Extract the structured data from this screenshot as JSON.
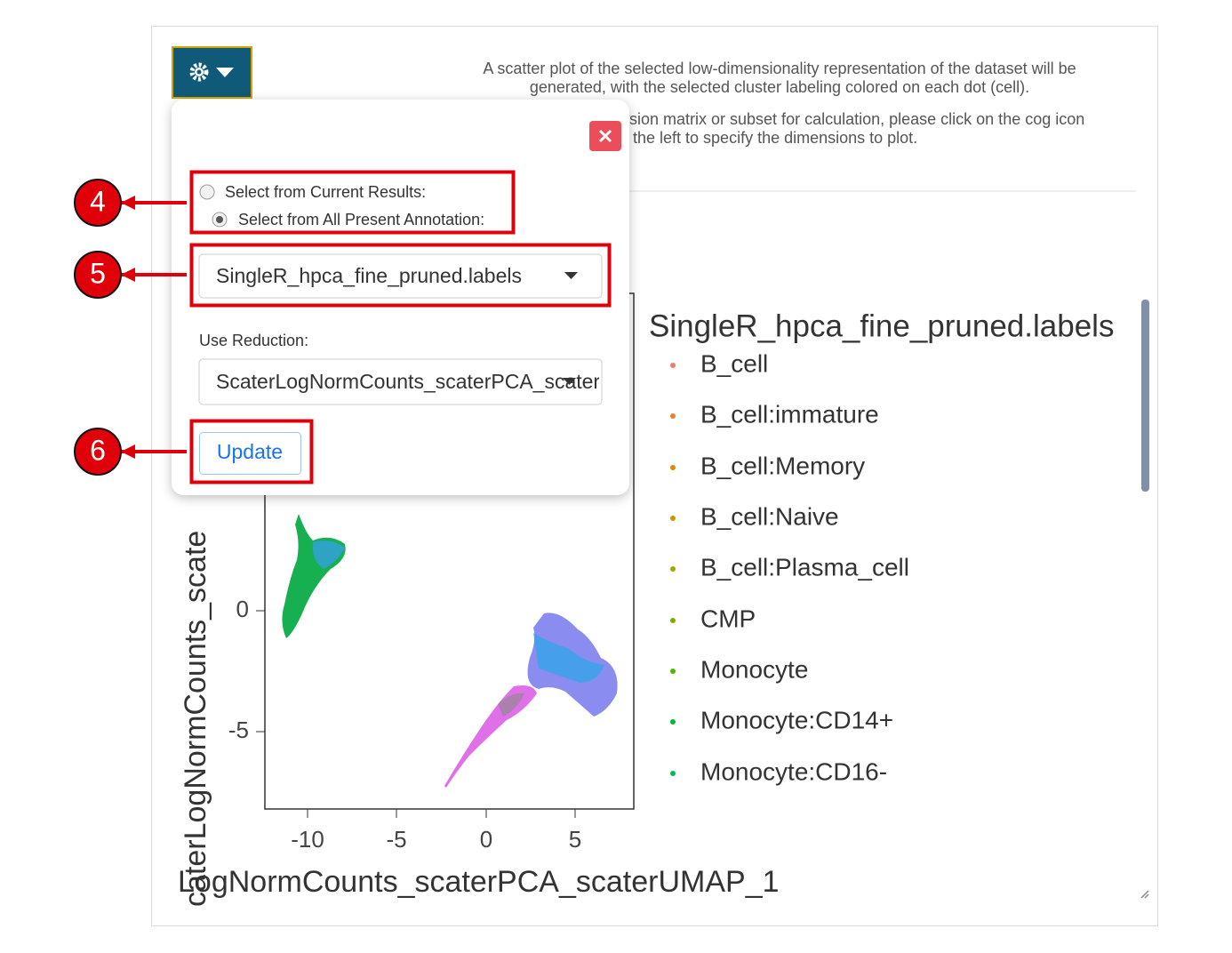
{
  "description": {
    "lines": [
      "A scatter plot of the selected low-dimensionality representation of the dataset will be",
      "generated, with the selected cluster labeling colored on each dot (cell).",
      "sion matrix or subset for calculation, please click on the cog icon",
      "the left to specify the dimensions to plot."
    ]
  },
  "popup": {
    "radio_options": [
      "Select from Current Results:",
      "Select from All Present Annotation:"
    ],
    "annotation_select": "SingleR_hpca_fine_pruned.labels",
    "reduction_label": "Use Reduction:",
    "reduction_select": "ScaterLogNormCounts_scaterPCA_scater",
    "update_button": "Update"
  },
  "callouts": [
    "4",
    "5",
    "6"
  ],
  "plot": {
    "y_axis_label": "caterLogNormCounts_scate",
    "x_axis_label": "LogNormCounts_scaterPCA_scaterUMAP_1",
    "y_ticks": [
      "0",
      "-5"
    ],
    "x_ticks": [
      "-10",
      "-5",
      "0",
      "5"
    ],
    "legend": {
      "title": "SingleR_hpca_fine_pruned.labels",
      "items": [
        {
          "label": "B_cell",
          "color": "#f8766d"
        },
        {
          "label": "B_cell:immature",
          "color": "#ef7f26"
        },
        {
          "label": "B_cell:Memory",
          "color": "#e38900"
        },
        {
          "label": "B_cell:Naive",
          "color": "#c49a00"
        },
        {
          "label": "B_cell:Plasma_cell",
          "color": "#a3a500"
        },
        {
          "label": "CMP",
          "color": "#7cae00"
        },
        {
          "label": "Monocyte",
          "color": "#53b400"
        },
        {
          "label": "Monocyte:CD14+",
          "color": "#00ba38"
        },
        {
          "label": "Monocyte:CD16-",
          "color": "#00bc56"
        }
      ]
    }
  }
}
